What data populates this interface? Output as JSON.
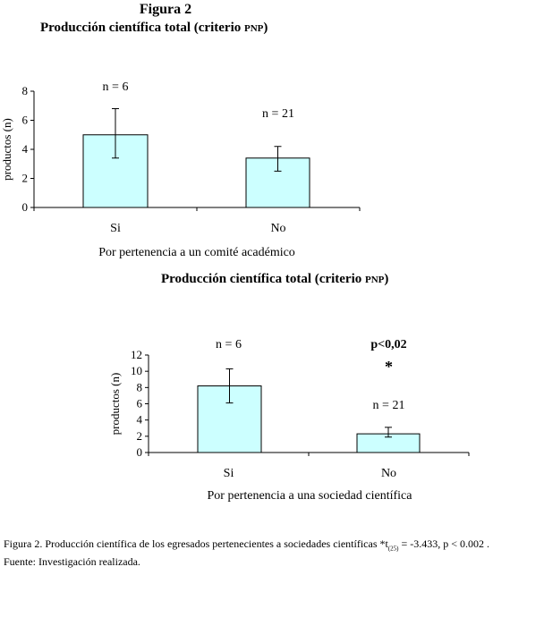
{
  "figure_label": "Figura 2",
  "caption": {
    "prefix": "Figura 2. Producción científica de los egresados pertenecientes a sociedades científicas *t",
    "subscript": "(25)",
    "suffix": " = -3.433, p < 0.002 .",
    "source": "Fuente: Investigación realizada."
  },
  "colors": {
    "bar_fill": "#ccffff",
    "bar_stroke": "#000000",
    "axis": "#000000"
  },
  "chart_data": [
    {
      "type": "bar",
      "title_main": "Producción científica total (criterio ",
      "title_abbr": "PNP",
      "title_end": ")",
      "ylabel": "productos (n)",
      "xlabel": "Por pertenencia a un comité académico",
      "ylim": [
        0,
        8
      ],
      "yticks": [
        "0",
        "2",
        "4",
        "6",
        "8"
      ],
      "categories": [
        "Si",
        "No"
      ],
      "values": [
        5.0,
        3.4
      ],
      "error_low": [
        3.4,
        2.5
      ],
      "error_high": [
        6.8,
        4.2
      ],
      "annotations": [
        "n = 6",
        "n = 21"
      ],
      "significance": null,
      "grid": false
    },
    {
      "type": "bar",
      "title_main": "Producción científica total (criterio ",
      "title_abbr": "PNP",
      "title_end": ")",
      "ylabel": "productos (n)",
      "xlabel": "Por pertenencia a una sociedad científica",
      "ylim": [
        0,
        12
      ],
      "yticks": [
        "0",
        "2",
        "4",
        "6",
        "8",
        "10",
        "12"
      ],
      "categories": [
        "Si",
        "No"
      ],
      "values": [
        8.2,
        2.3
      ],
      "error_low": [
        6.1,
        1.9
      ],
      "error_high": [
        10.3,
        3.1
      ],
      "annotations": [
        "n = 6",
        "n = 21"
      ],
      "significance": {
        "label": "p<0,02",
        "marker": "*"
      },
      "grid": false
    }
  ]
}
